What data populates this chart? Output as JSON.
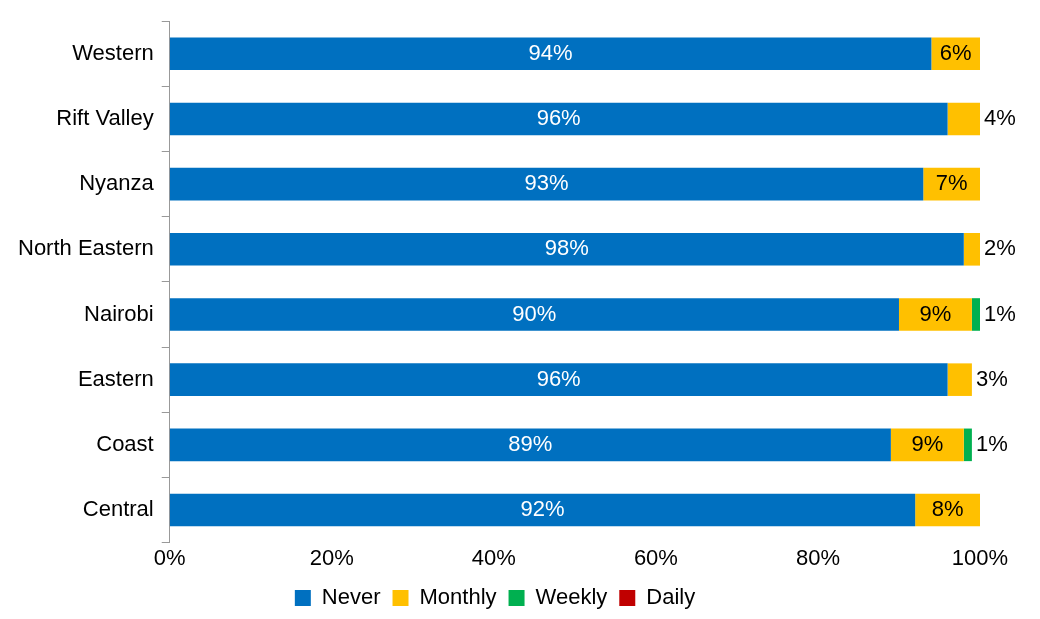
{
  "chart_data": {
    "type": "bar",
    "orientation": "horizontal",
    "stacked": true,
    "categories": [
      "Western",
      "Rift Valley",
      "Nyanza",
      "North Eastern",
      "Nairobi",
      "Eastern",
      "Coast",
      "Central"
    ],
    "series": [
      {
        "name": "Never",
        "color": "#0070c0",
        "values": [
          94,
          96,
          93,
          98,
          90,
          96,
          89,
          92
        ],
        "value_labels": [
          "94%",
          "96%",
          "93%",
          "98%",
          "90%",
          "96%",
          "89%",
          "92%"
        ]
      },
      {
        "name": "Monthly",
        "color": "#ffc000",
        "values": [
          6,
          4,
          7,
          2,
          9,
          3,
          9,
          8
        ],
        "value_labels": [
          "6%",
          "4%",
          "7%",
          "2%",
          "9%",
          "3%",
          "9%",
          "8%"
        ]
      },
      {
        "name": "Weekly",
        "color": "#00b050",
        "values": [
          null,
          null,
          null,
          null,
          1,
          null,
          1,
          null
        ],
        "value_labels": [
          null,
          null,
          null,
          null,
          "1%",
          null,
          "1%",
          null
        ]
      },
      {
        "name": "Daily",
        "color": "#c00000",
        "values": [
          null,
          null,
          null,
          null,
          null,
          null,
          null,
          null
        ]
      }
    ],
    "xlim": [
      0,
      100
    ],
    "xticks": [
      {
        "value": 0,
        "label": "0%"
      },
      {
        "value": 20,
        "label": "20%"
      },
      {
        "value": 40,
        "label": "40%"
      },
      {
        "value": 60,
        "label": "60%"
      },
      {
        "value": 80,
        "label": "80%"
      },
      {
        "value": 100,
        "label": "100%"
      }
    ],
    "grid": false,
    "legend": "bottom"
  }
}
